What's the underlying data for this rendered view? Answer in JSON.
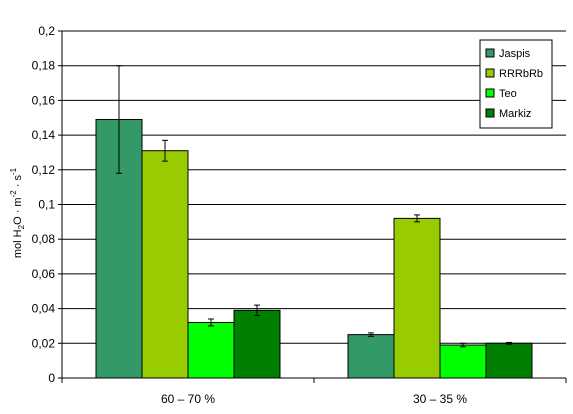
{
  "chart_data": {
    "type": "bar",
    "title": "",
    "xlabel": "",
    "ylabel": {
      "prefix": "mol H",
      "sub": "2",
      "mid": "O · m",
      "sup1": "-2",
      "mid2": " · s",
      "sup2": "-1"
    },
    "ylim": [
      0,
      0.2
    ],
    "yticks": [
      0,
      0.02,
      0.04,
      0.06,
      0.08,
      0.1,
      0.12,
      0.14,
      0.16,
      0.18,
      0.2
    ],
    "ytick_labels": [
      "0",
      "0,02",
      "0,04",
      "0,06",
      "0,08",
      "0,1",
      "0,12",
      "0,14",
      "0,16",
      "0,18",
      "0,2"
    ],
    "grid": true,
    "legend_position": "top-right",
    "categories": [
      "60 – 70 %",
      "30 – 35 %"
    ],
    "series": [
      {
        "name": "Jaspis",
        "color": "#339966",
        "values": [
          0.149,
          0.025
        ],
        "errors": [
          0.031,
          0.001
        ]
      },
      {
        "name": "RRRbRb",
        "color": "#99CC00",
        "values": [
          0.131,
          0.092
        ],
        "errors": [
          0.006,
          0.002
        ]
      },
      {
        "name": "Teo",
        "color": "#00FF00",
        "values": [
          0.032,
          0.019
        ],
        "errors": [
          0.002,
          0.001
        ]
      },
      {
        "name": "Markiz",
        "color": "#008000",
        "values": [
          0.039,
          0.02
        ],
        "errors": [
          0.003,
          0.0005
        ]
      }
    ]
  }
}
